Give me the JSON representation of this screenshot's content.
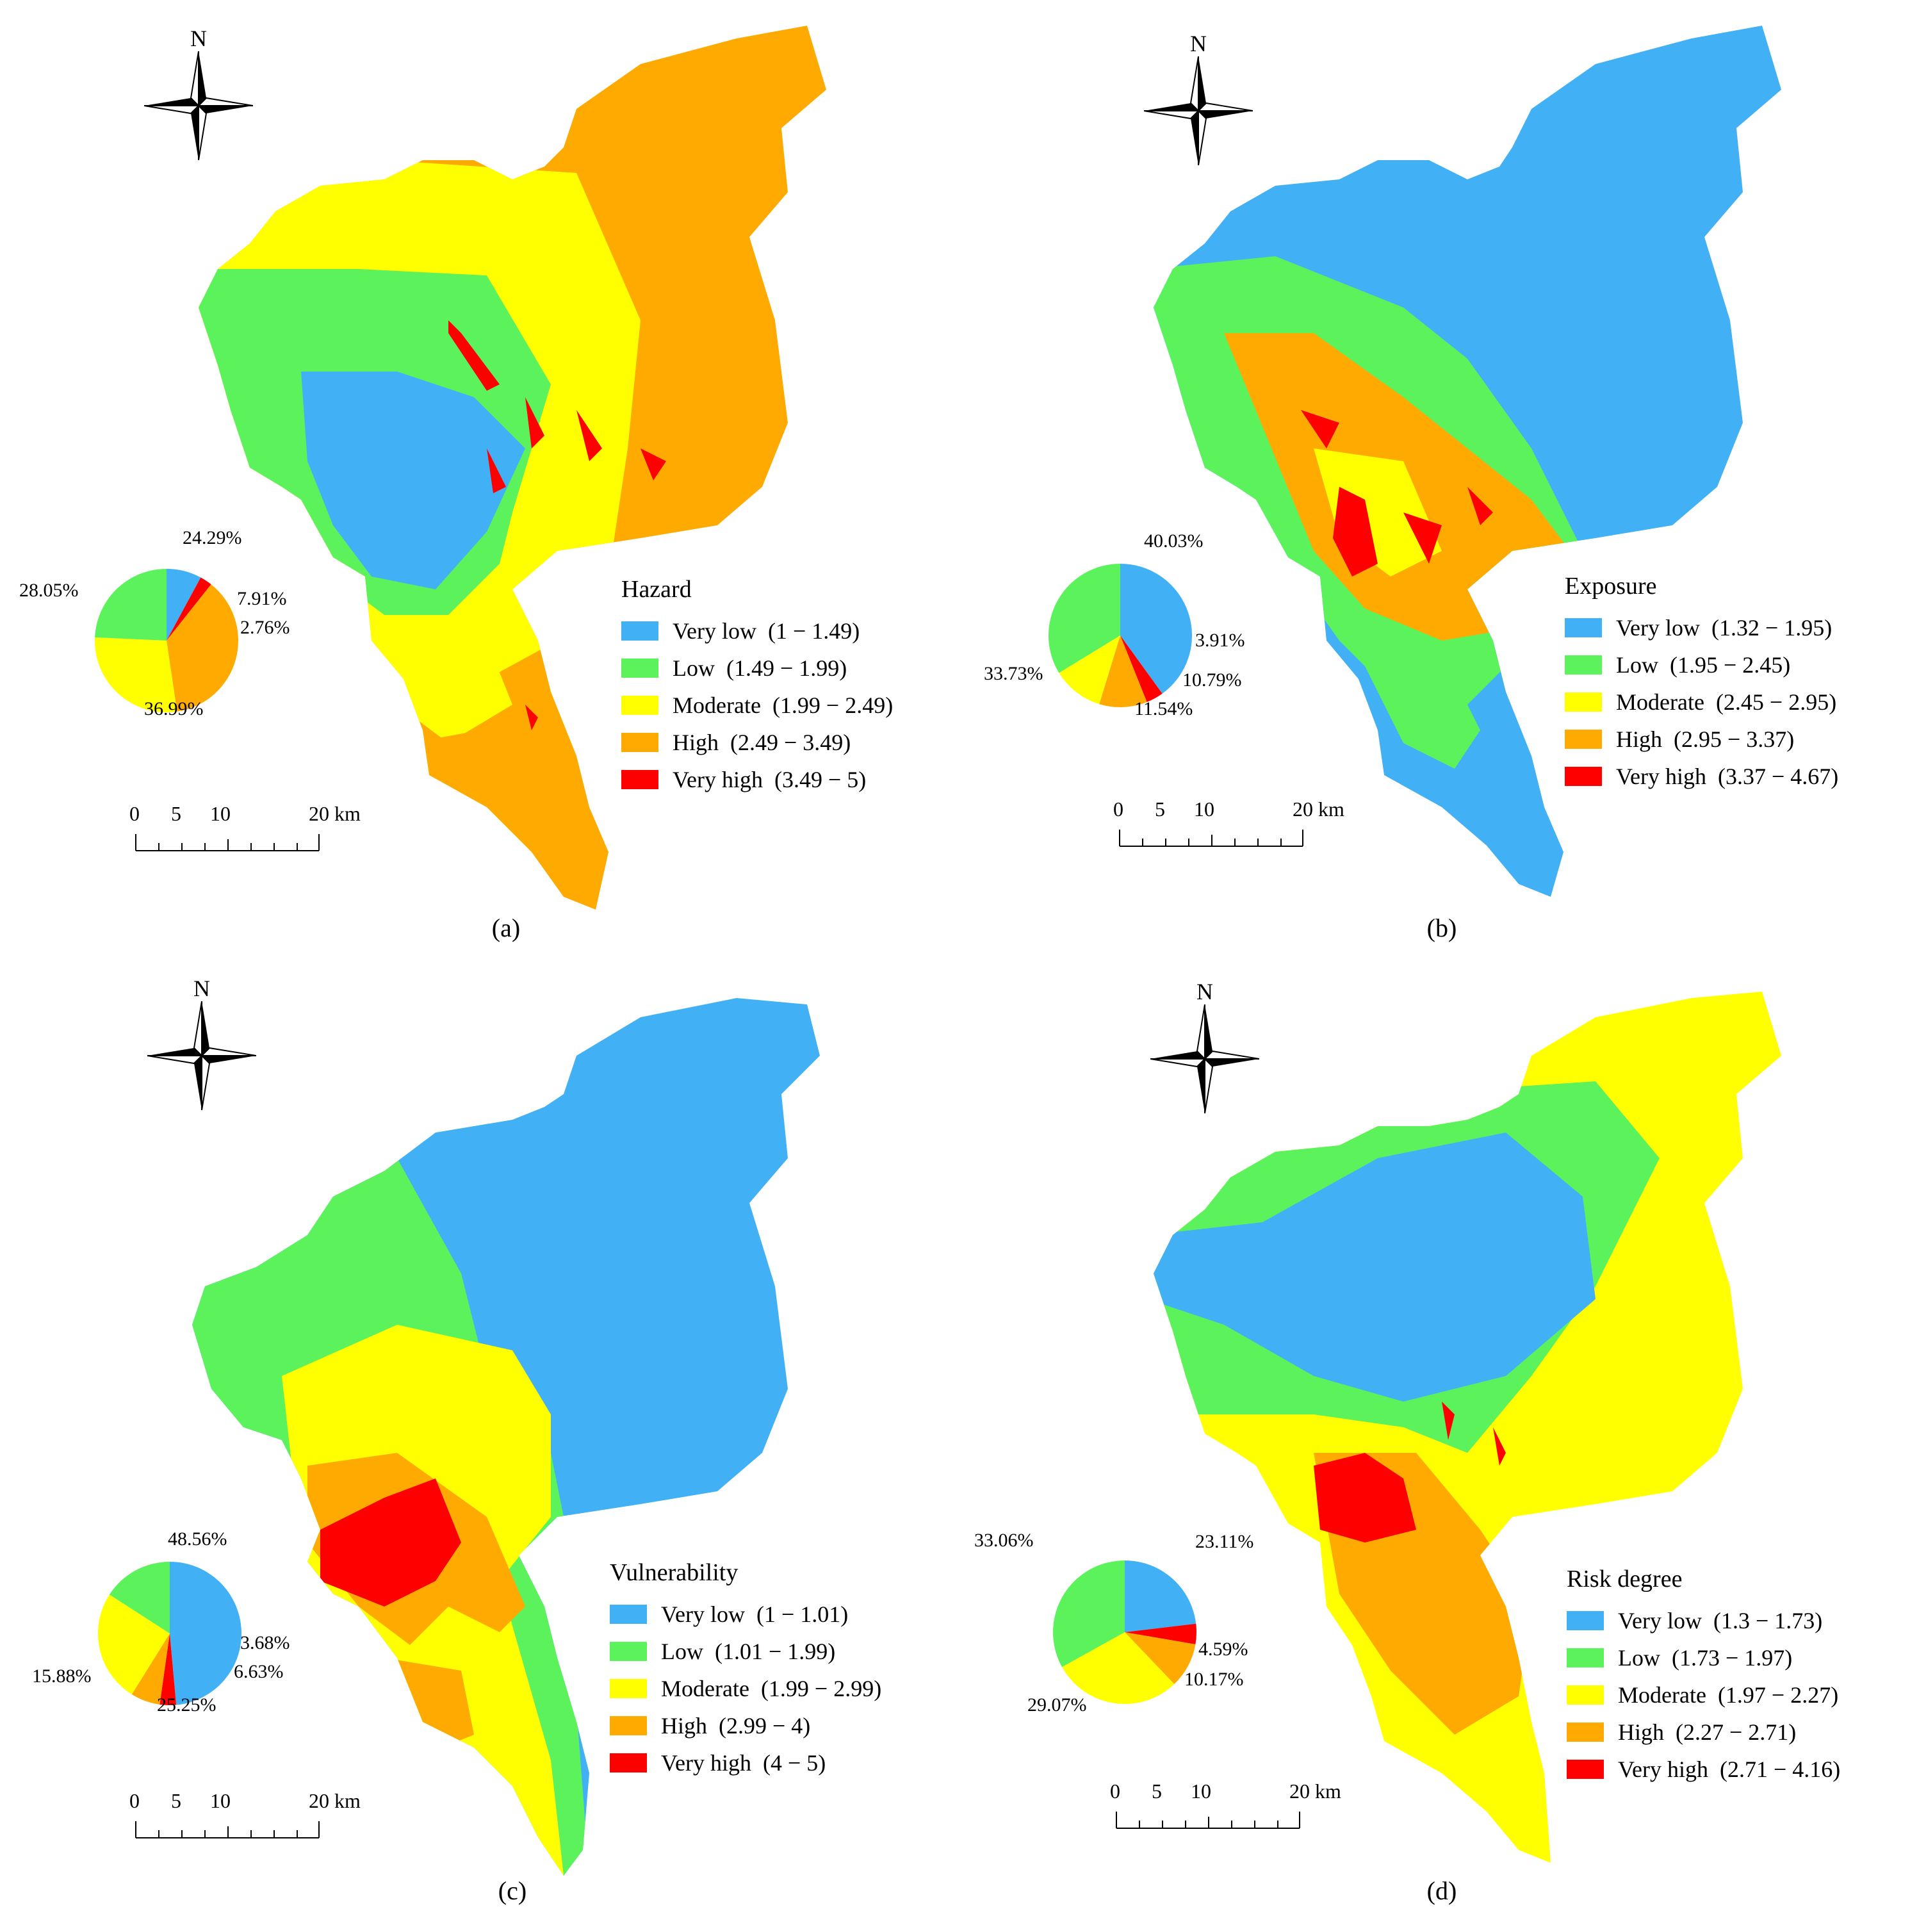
{
  "colors": {
    "very_low": "#42b0f5",
    "low": "#5cf25c",
    "moderate": "#ffff00",
    "high": "#ffaa00",
    "very_high": "#ff0000"
  },
  "north_letter": "N",
  "scale": {
    "labels": [
      "0",
      "5",
      "10",
      "20 km"
    ]
  },
  "panels": [
    {
      "caption": "(a)",
      "legend_title": "Hazard",
      "classes": [
        {
          "label": "Very low",
          "range": "(1 − 1.49)"
        },
        {
          "label": "Low",
          "range": "(1.49 − 1.99)"
        },
        {
          "label": "Moderate",
          "range": "(1.99 − 2.49)"
        },
        {
          "label": "High",
          "range": "(2.49 − 3.49)"
        },
        {
          "label": "Very high",
          "range": "(3.49 − 5)"
        }
      ],
      "pie": [
        {
          "label": "7.91%",
          "value": 7.91
        },
        {
          "label": "24.29%",
          "value": 24.29
        },
        {
          "label": "28.05%",
          "value": 28.05
        },
        {
          "label": "36.99%",
          "value": 36.99
        },
        {
          "label": "2.76%",
          "value": 2.76
        }
      ]
    },
    {
      "caption": "(b)",
      "legend_title": "Exposure",
      "classes": [
        {
          "label": "Very low",
          "range": "(1.32 − 1.95)"
        },
        {
          "label": "Low",
          "range": "(1.95 − 2.45)"
        },
        {
          "label": "Moderate",
          "range": "(2.45 − 2.95)"
        },
        {
          "label": "High",
          "range": "(2.95 − 3.37)"
        },
        {
          "label": "Very high",
          "range": "(3.37 − 4.67)"
        }
      ],
      "pie": [
        {
          "label": "40.03%",
          "value": 40.03
        },
        {
          "label": "33.73%",
          "value": 33.73
        },
        {
          "label": "11.54%",
          "value": 11.54
        },
        {
          "label": "10.79%",
          "value": 10.79
        },
        {
          "label": "3.91%",
          "value": 3.91
        }
      ]
    },
    {
      "caption": "(c)",
      "legend_title": "Vulnerability",
      "classes": [
        {
          "label": "Very low",
          "range": "(1 − 1.01)"
        },
        {
          "label": "Low",
          "range": "(1.01 − 1.99)"
        },
        {
          "label": "Moderate",
          "range": "(1.99 − 2.99)"
        },
        {
          "label": "High",
          "range": "(2.99 − 4)"
        },
        {
          "label": "Very high",
          "range": "(4 − 5)"
        }
      ],
      "pie": [
        {
          "label": "48.56%",
          "value": 48.56
        },
        {
          "label": "15.88%",
          "value": 15.88
        },
        {
          "label": "25.25%",
          "value": 25.25
        },
        {
          "label": "6.63%",
          "value": 6.63
        },
        {
          "label": "3.68%",
          "value": 3.68
        }
      ]
    },
    {
      "caption": "(d)",
      "legend_title": "Risk degree",
      "classes": [
        {
          "label": "Very low",
          "range": "(1.3 − 1.73)"
        },
        {
          "label": "Low",
          "range": "(1.73 − 1.97)"
        },
        {
          "label": "Moderate",
          "range": "(1.97 − 2.27)"
        },
        {
          "label": "High",
          "range": "(2.27 − 2.71)"
        },
        {
          "label": "Very high",
          "range": "(2.71 − 4.16)"
        }
      ],
      "pie": [
        {
          "label": "23.11%",
          "value": 23.11
        },
        {
          "label": "33.06%",
          "value": 33.06
        },
        {
          "label": "29.07%",
          "value": 29.07
        },
        {
          "label": "10.17%",
          "value": 10.17
        },
        {
          "label": "4.59%",
          "value": 4.59
        }
      ]
    }
  ]
}
